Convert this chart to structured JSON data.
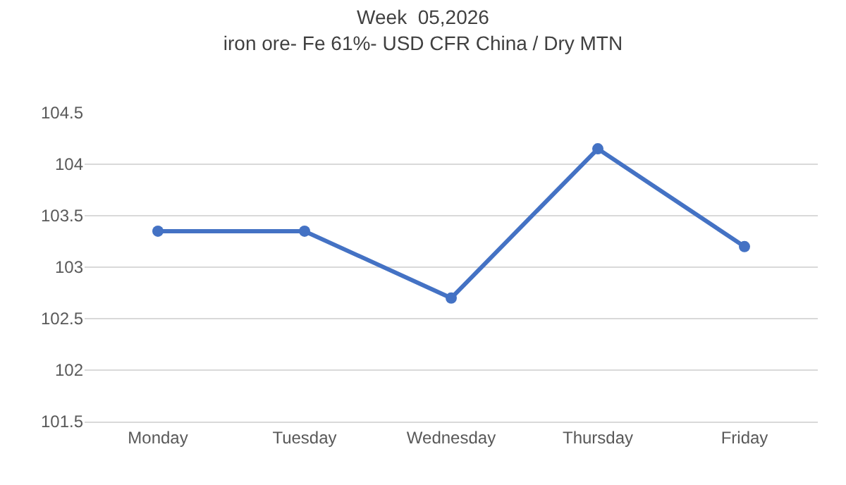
{
  "chart_data": {
    "type": "line",
    "title": "Week  05,2026",
    "subtitle": "iron ore- Fe 61%- USD CFR China / Dry MTN",
    "categories": [
      "Monday",
      "Tuesday",
      "Wednesday",
      "Thursday",
      "Friday"
    ],
    "series": [
      {
        "color": "#4472c4",
        "values": [
          103.35,
          103.35,
          102.7,
          104.15,
          103.2
        ]
      }
    ],
    "ylim": [
      101.5,
      104.5
    ],
    "yticks": [
      101.5,
      102,
      102.5,
      103,
      103.5,
      104,
      104.5
    ],
    "grid": "y",
    "marker": "circle",
    "line_style": "solid"
  }
}
